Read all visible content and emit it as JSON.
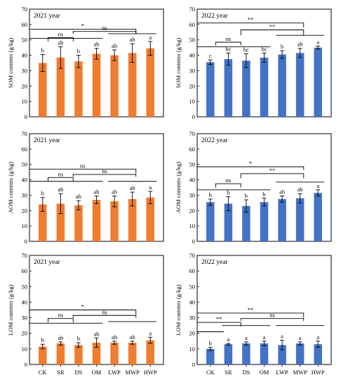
{
  "chart_data": [
    {
      "type": "bar",
      "title": "2021 year",
      "ylabel": "SOM contents (g/kg)",
      "ylim": [
        0,
        70
      ],
      "yticks": [
        0,
        10,
        20,
        30,
        40,
        50,
        60,
        70
      ],
      "categories": [
        "CK",
        "SR",
        "DS",
        "OM",
        "LWP",
        "MWP",
        "HWP"
      ],
      "show_categories": false,
      "color": "#ED7D31",
      "values": [
        35,
        38.5,
        36,
        41,
        40,
        41.5,
        44.5
      ],
      "errors": [
        5.5,
        7,
        4,
        3.5,
        3.5,
        6,
        4.5
      ],
      "letters": [
        "b",
        "ab",
        "b",
        "ab",
        "ab",
        "ab",
        "a"
      ],
      "lines": [
        {
          "from": 0,
          "to": 3,
          "y": 51
        },
        {
          "from": 4,
          "to": 6,
          "y": 54
        }
      ],
      "brackets": [
        {
          "label": "ns",
          "y": 51.5,
          "from": 0.3,
          "to": 1.7,
          "drop": 2.5
        },
        {
          "label": "*",
          "y": 57,
          "from": 0,
          "to": 5.2,
          "drop": 3
        },
        {
          "label": "ns",
          "y": 55.5,
          "from": 1.7,
          "to": 5.2,
          "drop": 1.5
        }
      ]
    },
    {
      "type": "bar",
      "title": "2022 year",
      "ylabel": "SOM contents (g/kg)",
      "ylim": [
        0,
        70
      ],
      "yticks": [
        0,
        10,
        20,
        30,
        40,
        50,
        60,
        70
      ],
      "categories": [
        "CK",
        "SR",
        "DS",
        "OM",
        "LWP",
        "MWP",
        "HWP"
      ],
      "show_categories": false,
      "color": "#4472C4",
      "values": [
        35.5,
        37.5,
        36.5,
        38.5,
        40.5,
        41.5,
        45
      ],
      "errors": [
        1.5,
        4,
        4.5,
        3,
        2.5,
        3,
        1
      ],
      "letters": [
        "c",
        "bc",
        "bc",
        "bc",
        "b",
        "ab",
        "a"
      ],
      "lines": [
        {
          "from": 0,
          "to": 3,
          "y": 45.5
        },
        {
          "from": 4,
          "to": 6,
          "y": 53
        }
      ],
      "brackets": [
        {
          "label": "ns",
          "y": 48.5,
          "from": 0.3,
          "to": 1.7,
          "drop": 2
        },
        {
          "label": "**",
          "y": 61,
          "from": 0,
          "to": 5.2,
          "drop": 3
        },
        {
          "label": "**",
          "y": 56.5,
          "from": 1.7,
          "to": 5.2,
          "drop": 3.5
        }
      ]
    },
    {
      "type": "bar",
      "title": "2021 year",
      "ylabel": "AOM contents (g/kg)",
      "ylim": [
        0,
        70
      ],
      "yticks": [
        0,
        10,
        20,
        30,
        40,
        50,
        60,
        70
      ],
      "categories": [
        "CK",
        "SR",
        "DS",
        "OM",
        "LWP",
        "MWP",
        "HWP"
      ],
      "show_categories": false,
      "color": "#ED7D31",
      "values": [
        24,
        24.5,
        23.5,
        27,
        26,
        27.5,
        28.5
      ],
      "errors": [
        4.5,
        6.5,
        3,
        2.5,
        3.5,
        4.5,
        4
      ],
      "letters": [
        "b",
        "ab",
        "ab",
        "ab",
        "ab",
        "ab",
        "a"
      ],
      "lines": [
        {
          "from": 0,
          "to": 3,
          "y": 39
        },
        {
          "from": 4,
          "to": 6,
          "y": 39
        }
      ],
      "brackets": [
        {
          "label": "ns",
          "y": 41.5,
          "from": 0.3,
          "to": 1.7,
          "drop": 2.5
        },
        {
          "label": "ns",
          "y": 47,
          "from": 0,
          "to": 5.2,
          "drop": 3
        },
        {
          "label": "ns",
          "y": 43.5,
          "from": 1.7,
          "to": 5.2,
          "drop": 1.5
        }
      ]
    },
    {
      "type": "bar",
      "title": "2022 year",
      "ylabel": "AOM contents (g/kg)",
      "ylim": [
        0,
        70
      ],
      "yticks": [
        0,
        10,
        20,
        30,
        40,
        50,
        60,
        70
      ],
      "categories": [
        "CK",
        "SR",
        "DS",
        "OM",
        "LWP",
        "MWP",
        "HWP"
      ],
      "show_categories": false,
      "color": "#4472C4",
      "values": [
        25.5,
        24.5,
        23,
        25.5,
        27.5,
        28,
        31.5
      ],
      "errors": [
        2,
        4.5,
        4,
        2.5,
        2,
        3,
        2
      ],
      "letters": [
        "b",
        "b",
        "b",
        "b",
        "ab",
        "ab",
        "a"
      ],
      "lines": [
        {
          "from": 0,
          "to": 3,
          "y": 33.5
        },
        {
          "from": 4,
          "to": 6,
          "y": 38.5
        }
      ],
      "brackets": [
        {
          "label": "ns",
          "y": 37.5,
          "from": 0.3,
          "to": 1.7,
          "drop": 2.5
        },
        {
          "label": "*",
          "y": 48.5,
          "from": 0,
          "to": 5.2,
          "drop": 2
        },
        {
          "label": "**",
          "y": 44,
          "from": 1.7,
          "to": 5.2,
          "drop": 3
        }
      ]
    },
    {
      "type": "bar",
      "title": "2021 year",
      "ylabel": "LOM contents (g/kg)",
      "ylim": [
        0,
        70
      ],
      "yticks": [
        0,
        10,
        20,
        30,
        40,
        50,
        60,
        70
      ],
      "categories": [
        "CK",
        "SR",
        "DS",
        "OM",
        "LWP",
        "MWP",
        "HWP"
      ],
      "show_categories": true,
      "color": "#ED7D31",
      "values": [
        11.5,
        13.5,
        12.5,
        14,
        14,
        14,
        15.5
      ],
      "errors": [
        1.5,
        1,
        1.5,
        3,
        1,
        1,
        2
      ],
      "letters": [
        "b",
        "ab",
        "b",
        "ab",
        "ab",
        "ab",
        "a"
      ],
      "lines": [
        {
          "from": 0,
          "to": 3,
          "y": 26.5
        },
        {
          "from": 4,
          "to": 6,
          "y": 27.5
        }
      ],
      "brackets": [
        {
          "label": "ns",
          "y": 29.5,
          "from": 0.3,
          "to": 1.7,
          "drop": 2.5
        },
        {
          "label": "*",
          "y": 35,
          "from": 0,
          "to": 5.2,
          "drop": 3
        },
        {
          "label": "ns",
          "y": 31.5,
          "from": 1.7,
          "to": 5.2,
          "drop": 1.5
        }
      ]
    },
    {
      "type": "bar",
      "title": "2022 year",
      "ylabel": "LOM contents (g/kg)",
      "ylim": [
        0,
        70
      ],
      "yticks": [
        0,
        10,
        20,
        30,
        40,
        50,
        60,
        70
      ],
      "categories": [
        "CK",
        "SR",
        "DS",
        "OM",
        "LWP",
        "MWP",
        "HWP"
      ],
      "show_categories": true,
      "color": "#4472C4",
      "values": [
        10,
        13,
        13.5,
        13.5,
        12.5,
        13.5,
        13
      ],
      "errors": [
        1,
        0.5,
        1,
        1.5,
        3,
        1,
        2
      ],
      "letters": [
        "b",
        "a",
        "a",
        "a",
        "a",
        "a",
        "a"
      ],
      "lines": [
        {
          "from": 0,
          "to": 0.4,
          "y": 21
        },
        {
          "from": 1,
          "to": 3,
          "y": 25
        },
        {
          "from": 4,
          "to": 6,
          "y": 25
        }
      ],
      "brackets": [
        {
          "label": "**",
          "y": 27,
          "from": 0,
          "to": 1.7,
          "drop": 2.5
        },
        {
          "label": "**",
          "y": 33,
          "from": 0,
          "to": 5.2,
          "drop": 3
        },
        {
          "label": "ns",
          "y": 29.5,
          "from": 1.7,
          "to": 5.2,
          "drop": 1.5
        }
      ]
    }
  ]
}
